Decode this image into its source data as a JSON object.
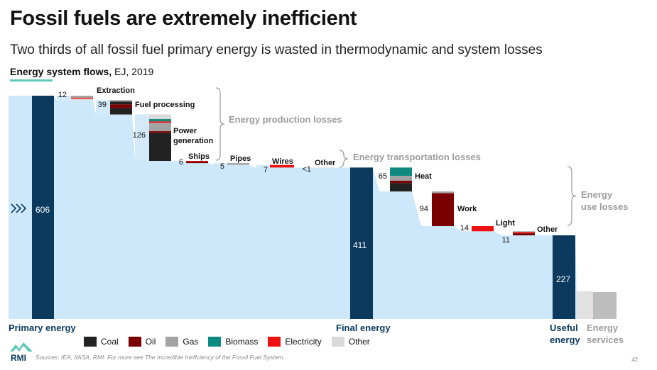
{
  "title": "Fossil fuels are extremely inefficient",
  "subtitle": "Two thirds of all fossil fuel primary energy is wasted in thermodynamic and system losses",
  "section": {
    "bold": "Energy system flows,",
    "rest": " EJ, 2019"
  },
  "source": "Sources: IEA, IIASA, RMI. For more see The Incredible Ineffciency of the Fossil Fuel System.",
  "page_number": "42",
  "logo_text": "RMI",
  "colors": {
    "navy": "#0b3a5e",
    "flow": "#cde8fa",
    "coal": "#222222",
    "oil": "#7a0000",
    "gas": "#a3a3a3",
    "biomass": "#0e8a80",
    "electricity": "#ee1111",
    "other": "#d9d9d9",
    "brace": "#999999",
    "teal": "#5dc8b7"
  },
  "chart_data": {
    "type": "waterfall",
    "title": "Energy system flows",
    "unit": "EJ, 2019",
    "stages": [
      {
        "name": "Primary energy",
        "value": 606
      },
      {
        "name": "Final energy",
        "value": 411
      },
      {
        "name": "Useful energy",
        "value": 227
      },
      {
        "name": "Energy services",
        "value": null
      }
    ],
    "losses": [
      {
        "name": "Extraction",
        "value": 12,
        "value_label": "12",
        "group": "Energy production losses"
      },
      {
        "name": "Fuel processing",
        "value": 39,
        "value_label": "39",
        "group": "Energy production losses"
      },
      {
        "name": "Power generation",
        "value": 126,
        "value_label": "126",
        "group": "Energy production losses"
      },
      {
        "name": "Ships",
        "value": 6,
        "value_label": "6",
        "group": "Energy transportation losses"
      },
      {
        "name": "Pipes",
        "value": 5,
        "value_label": "5",
        "group": "Energy transportation losses"
      },
      {
        "name": "Wires",
        "value": 7,
        "value_label": "7",
        "group": "Energy transportation losses"
      },
      {
        "name": "Other",
        "value": 0.5,
        "value_label": "<1",
        "group": "Energy transportation losses"
      },
      {
        "name": "Heat",
        "value": 65,
        "value_label": "65",
        "group": "Energy use losses"
      },
      {
        "name": "Work",
        "value": 94,
        "value_label": "94",
        "group": "Energy use losses"
      },
      {
        "name": "Light",
        "value": 14,
        "value_label": "14",
        "group": "Energy use losses"
      },
      {
        "name": "Other",
        "value": 11,
        "value_label": "11",
        "group": "Energy use losses"
      }
    ],
    "groups": [
      {
        "name": "Energy production losses"
      },
      {
        "name": "Energy transportation losses"
      },
      {
        "name": "Energy use losses"
      }
    ],
    "legend": [
      "Coal",
      "Oil",
      "Gas",
      "Biomass",
      "Electricity",
      "Other"
    ]
  }
}
